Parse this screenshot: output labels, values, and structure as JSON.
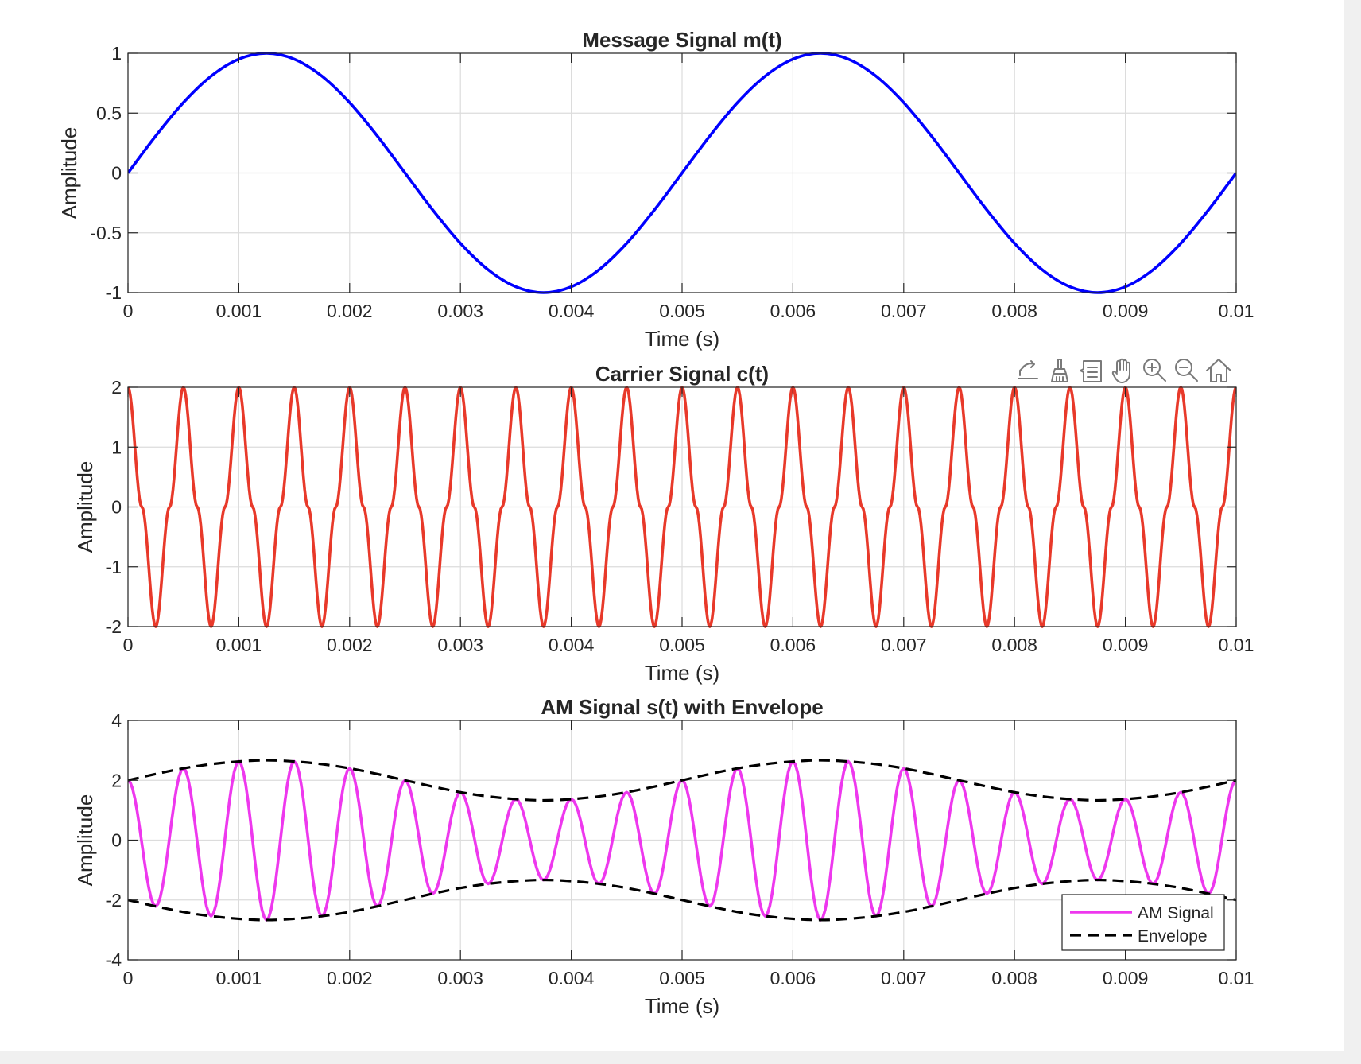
{
  "chart_data": [
    {
      "type": "line",
      "title": "Message Signal m(t)",
      "xlabel": "Time (s)",
      "ylabel": "Amplitude",
      "xlim": [
        0,
        0.01
      ],
      "ylim": [
        -1,
        1
      ],
      "xticks": [
        "0",
        "0.001",
        "0.002",
        "0.003",
        "0.004",
        "0.005",
        "0.006",
        "0.007",
        "0.008",
        "0.009",
        "0.01"
      ],
      "yticks": [
        "1",
        "0.5",
        "0",
        "-0.5",
        "-1"
      ],
      "grid": true,
      "series": [
        {
          "color": "#0000ff",
          "style": "solid",
          "x": [
            0,
            0.00025,
            0.0005,
            0.00075,
            0.001,
            0.00125,
            0.0015,
            0.00175,
            0.002,
            0.00225,
            0.0025,
            0.00275,
            0.003,
            0.00325,
            0.0035,
            0.00375,
            0.004,
            0.00425,
            0.0045,
            0.00475,
            0.005,
            0.00525,
            0.0055,
            0.00575,
            0.006,
            0.00625,
            0.0065,
            0.00675,
            0.007,
            0.00725,
            0.0075,
            0.00775,
            0.008,
            0.00825,
            0.0085,
            0.00875,
            0.009,
            0.00925,
            0.0095,
            0.00975,
            0.01
          ],
          "y": [
            0,
            0.309,
            0.588,
            0.809,
            0.951,
            1,
            0.951,
            0.809,
            0.588,
            0.309,
            0,
            -0.309,
            -0.588,
            -0.809,
            -0.951,
            -1,
            -0.951,
            -0.809,
            -0.588,
            -0.309,
            0,
            0.309,
            0.588,
            0.809,
            0.951,
            1,
            0.951,
            0.809,
            0.588,
            0.309,
            0,
            -0.309,
            -0.588,
            -0.809,
            -0.951,
            -1,
            -0.951,
            -0.809,
            -0.588,
            -0.309,
            0
          ]
        }
      ]
    },
    {
      "type": "line",
      "title": "Carrier Signal c(t)",
      "xlabel": "Time (s)",
      "ylabel": "Amplitude",
      "xlim": [
        0,
        0.01
      ],
      "ylim": [
        -2,
        2
      ],
      "xticks": [
        "0",
        "0.001",
        "0.002",
        "0.003",
        "0.004",
        "0.005",
        "0.006",
        "0.007",
        "0.008",
        "0.009",
        "0.01"
      ],
      "yticks": [
        "2",
        "1",
        "0",
        "-1",
        "-2"
      ],
      "grid": true,
      "series": [
        {
          "color": "#e8392a",
          "style": "solid",
          "x": [
            0,
            0.000125,
            0.00025,
            0.000375,
            0.0005,
            0.000625,
            0.00075,
            0.000875,
            0.001,
            0.001125,
            0.00125,
            0.001375,
            0.0015,
            0.001625,
            0.00175,
            0.001875,
            0.002,
            0.002125,
            0.00225,
            0.002375,
            0.0025,
            0.002625,
            0.00275,
            0.002875,
            0.003,
            0.003125,
            0.00325,
            0.003375,
            0.0035,
            0.003625,
            0.00375,
            0.003875,
            0.004,
            0.004125,
            0.00425,
            0.004375,
            0.0045,
            0.004625,
            0.00475,
            0.004875,
            0.005,
            0.005125,
            0.00525,
            0.005375,
            0.0055,
            0.005625,
            0.00575,
            0.005875,
            0.006,
            0.006125,
            0.00625,
            0.006375,
            0.0065,
            0.006625,
            0.00675,
            0.006875,
            0.007,
            0.007125,
            0.00725,
            0.007375,
            0.0075,
            0.007625,
            0.00775,
            0.007875,
            0.008,
            0.008125,
            0.00825,
            0.008375,
            0.0085,
            0.008625,
            0.00875,
            0.008875,
            0.009,
            0.009125,
            0.00925,
            0.009375,
            0.0095,
            0.009625,
            0.00975,
            0.009875,
            0.01
          ],
          "y": [
            2,
            0,
            -2,
            0,
            2,
            0,
            -2,
            0,
            2,
            0,
            -2,
            0,
            2,
            0,
            -2,
            0,
            2,
            0,
            -2,
            0,
            2,
            0,
            -2,
            0,
            2,
            0,
            -2,
            0,
            2,
            0,
            -2,
            0,
            2,
            0,
            -2,
            0,
            2,
            0,
            -2,
            0,
            2,
            0,
            -2,
            0,
            2,
            0,
            -2,
            0,
            2,
            0,
            -2,
            0,
            2,
            0,
            -2,
            0,
            2,
            0,
            -2,
            0,
            2,
            0,
            -2,
            0,
            2,
            0,
            -2,
            0,
            2,
            0,
            -2,
            0,
            2,
            0,
            -2,
            0,
            2,
            0,
            -2,
            0,
            2
          ]
        }
      ]
    },
    {
      "type": "line",
      "title": "AM Signal s(t) with Envelope",
      "xlabel": "Time (s)",
      "ylabel": "Amplitude",
      "xlim": [
        0,
        0.01
      ],
      "ylim": [
        -4,
        4
      ],
      "xticks": [
        "0",
        "0.001",
        "0.002",
        "0.003",
        "0.004",
        "0.005",
        "0.006",
        "0.007",
        "0.008",
        "0.009",
        "0.01"
      ],
      "yticks": [
        "4",
        "2",
        "0",
        "-2",
        "-4"
      ],
      "grid": true,
      "legend": {
        "position": "bottom-right"
      },
      "series": [
        {
          "name": "AM Signal",
          "color": "#ee38ee",
          "style": "solid",
          "x": [
            0,
            0.00025,
            0.0005,
            0.00075,
            0.001,
            0.00125,
            0.0015,
            0.00175,
            0.002,
            0.00225,
            0.0025,
            0.00275,
            0.003,
            0.00325,
            0.0035,
            0.00375,
            0.004,
            0.00425,
            0.0045,
            0.00475,
            0.005,
            0.00525,
            0.0055,
            0.00575,
            0.006,
            0.00625,
            0.0065,
            0.00675,
            0.007,
            0.00725,
            0.0075,
            0.00775,
            0.008,
            0.00825,
            0.0085,
            0.00875,
            0.009,
            0.00925,
            0.0095,
            0.00975,
            0.01
          ],
          "y": [
            2,
            -2.21,
            2.4,
            -2.54,
            2.63,
            -2.67,
            2.63,
            -2.54,
            2.4,
            -2.21,
            2,
            -1.79,
            1.6,
            -1.46,
            1.37,
            -1.33,
            1.37,
            -1.46,
            1.6,
            -1.79,
            2,
            -2.21,
            2.4,
            -2.54,
            2.63,
            -2.67,
            2.63,
            -2.54,
            2.4,
            -2.21,
            2,
            -1.79,
            1.6,
            -1.46,
            1.37,
            -1.33,
            1.37,
            -1.46,
            1.6,
            -1.79,
            2
          ]
        },
        {
          "name": "Envelope",
          "color": "#000000",
          "style": "dashed",
          "x": [
            0,
            0.00025,
            0.0005,
            0.00075,
            0.001,
            0.00125,
            0.0015,
            0.00175,
            0.002,
            0.00225,
            0.0025,
            0.00275,
            0.003,
            0.00325,
            0.0035,
            0.00375,
            0.004,
            0.00425,
            0.0045,
            0.00475,
            0.005,
            0.00525,
            0.0055,
            0.00575,
            0.006,
            0.00625,
            0.0065,
            0.00675,
            0.007,
            0.00725,
            0.0075,
            0.00775,
            0.008,
            0.00825,
            0.0085,
            0.00875,
            0.009,
            0.00925,
            0.0095,
            0.00975,
            0.01
          ],
          "y": [
            2,
            2.21,
            2.4,
            2.54,
            2.63,
            2.67,
            2.63,
            2.54,
            2.4,
            2.21,
            2,
            1.79,
            1.6,
            1.46,
            1.37,
            1.33,
            1.37,
            1.46,
            1.6,
            1.79,
            2,
            2.21,
            2.4,
            2.54,
            2.63,
            2.67,
            2.63,
            2.54,
            2.4,
            2.21,
            2,
            1.79,
            1.6,
            1.46,
            1.37,
            1.33,
            1.37,
            1.46,
            1.6,
            1.79,
            2
          ]
        },
        {
          "color": "#000000",
          "style": "dashed",
          "x": [
            0,
            0.00025,
            0.0005,
            0.00075,
            0.001,
            0.00125,
            0.0015,
            0.00175,
            0.002,
            0.00225,
            0.0025,
            0.00275,
            0.003,
            0.00325,
            0.0035,
            0.00375,
            0.004,
            0.00425,
            0.0045,
            0.00475,
            0.005,
            0.00525,
            0.0055,
            0.00575,
            0.006,
            0.00625,
            0.0065,
            0.00675,
            0.007,
            0.00725,
            0.0075,
            0.00775,
            0.008,
            0.00825,
            0.0085,
            0.00875,
            0.009,
            0.00925,
            0.0095,
            0.00975,
            0.01
          ],
          "y": [
            -2,
            -2.21,
            -2.4,
            -2.54,
            -2.63,
            -2.67,
            -2.63,
            -2.54,
            -2.4,
            -2.21,
            -2,
            -1.79,
            -1.6,
            -1.46,
            -1.37,
            -1.33,
            -1.37,
            -1.46,
            -1.6,
            -1.79,
            -2,
            -2.21,
            -2.4,
            -2.54,
            -2.63,
            -2.67,
            -2.63,
            -2.54,
            -2.4,
            -2.21,
            -2,
            -1.79,
            -1.6,
            -1.46,
            -1.37,
            -1.33,
            -1.37,
            -1.46,
            -1.6,
            -1.79,
            -2
          ]
        }
      ]
    }
  ],
  "toolbar": {
    "icons": [
      "export-icon",
      "brush-icon",
      "data-tip-icon",
      "pan-icon",
      "zoom-in-icon",
      "zoom-out-icon",
      "home-icon"
    ]
  }
}
